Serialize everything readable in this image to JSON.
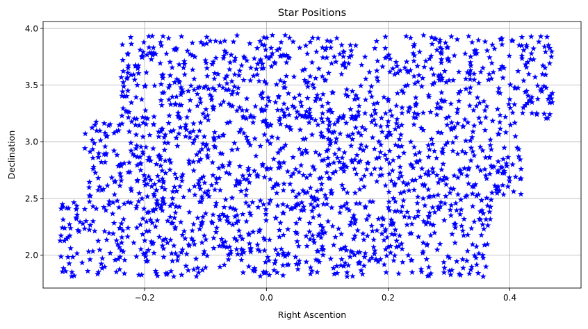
{
  "chart_data": {
    "type": "scatter",
    "title": "Star Positions",
    "xlabel": "Right Ascention",
    "ylabel": "Declination",
    "xlim": [
      -0.367,
      0.517
    ],
    "ylim": [
      1.71,
      4.06
    ],
    "xticks": [
      -0.2,
      0.0,
      0.2,
      0.4
    ],
    "xtick_labels": [
      "−0.2",
      "0.0",
      "0.2",
      "0.4"
    ],
    "yticks": [
      2.0,
      2.5,
      3.0,
      3.5,
      4.0
    ],
    "ytick_labels": [
      "2.0",
      "2.5",
      "3.0",
      "3.5",
      "4.0"
    ],
    "grid": true,
    "marker": "star",
    "color": "#0000ff",
    "point_count_estimate": 2000,
    "regions": [
      {
        "ra_min": -0.34,
        "ra_max": 0.37,
        "dec_min": 1.81,
        "dec_max": 2.5,
        "density": 1.0
      },
      {
        "ra_min": -0.3,
        "ra_max": 0.42,
        "dec_min": 2.5,
        "dec_max": 3.2,
        "density": 1.0
      },
      {
        "ra_min": -0.24,
        "ra_max": 0.47,
        "dec_min": 3.2,
        "dec_max": 3.94,
        "density": 1.0
      },
      {
        "ra_min": -0.24,
        "ra_max": 0.42,
        "dec_min": 3.0,
        "dec_max": 3.3,
        "density": 1.0
      },
      {
        "ra_min": 0.37,
        "ra_max": 0.42,
        "dec_min": 2.55,
        "dec_max": 3.0,
        "density": 0.8
      },
      {
        "ra_min": 0.42,
        "ra_max": 0.47,
        "dec_min": 3.25,
        "dec_max": 3.94,
        "density": 0.9
      },
      {
        "ra_min": -0.3,
        "ra_max": -0.24,
        "dec_min": 3.0,
        "dec_max": 3.2,
        "density": 0.7
      }
    ]
  }
}
